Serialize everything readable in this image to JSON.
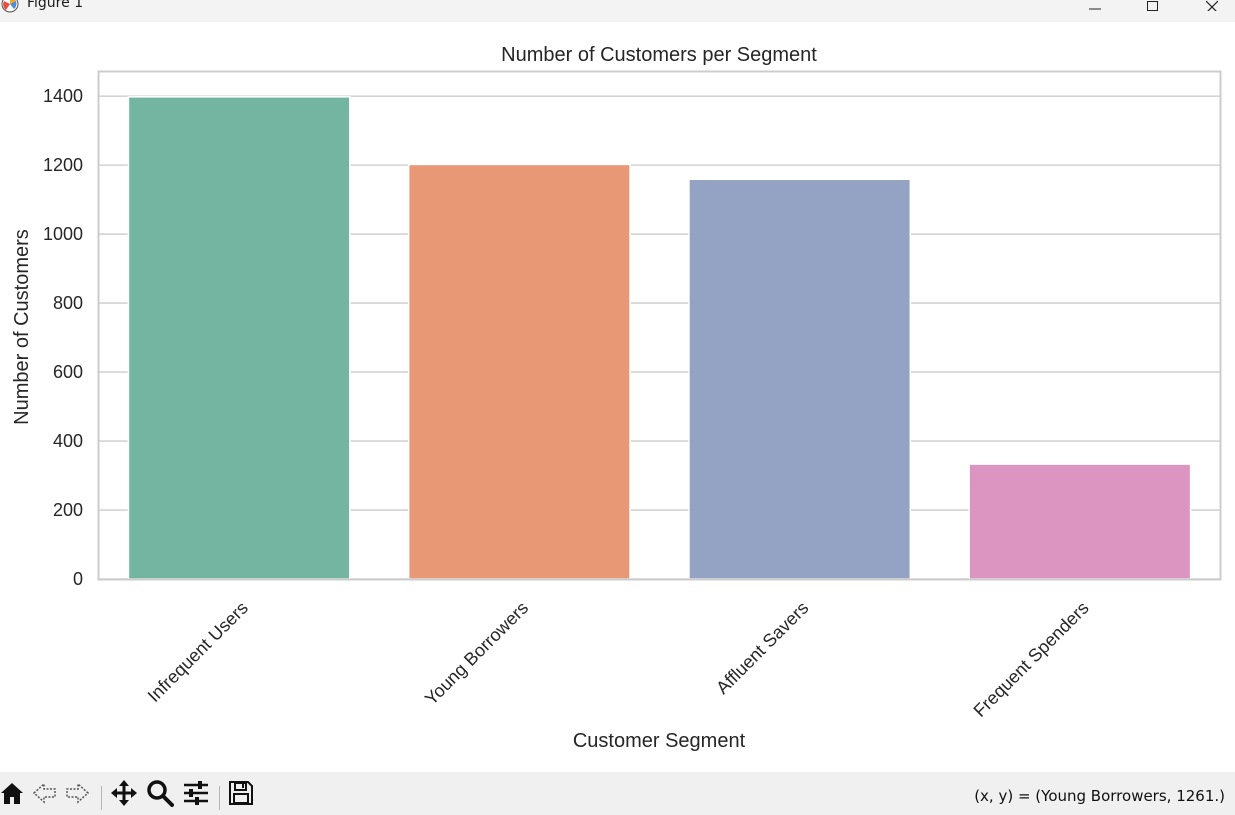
{
  "window": {
    "title": "Figure 1",
    "icons": {
      "app": "matplotlib-icon",
      "minimize": "minimize-icon",
      "maximize": "maximize-icon",
      "close": "close-icon"
    }
  },
  "toolbar": {
    "buttons": [
      {
        "name": "home",
        "icon": "home-icon"
      },
      {
        "name": "back",
        "icon": "back-arrow-icon"
      },
      {
        "name": "forward",
        "icon": "forward-arrow-icon"
      },
      {
        "name": "pan",
        "icon": "move-icon"
      },
      {
        "name": "zoom",
        "icon": "magnifier-icon"
      },
      {
        "name": "configure",
        "icon": "sliders-icon"
      },
      {
        "name": "save",
        "icon": "floppy-disk-icon"
      }
    ],
    "coords_text": "(x, y) = (Young Borrowers, 1261.)"
  },
  "chart_data": {
    "type": "bar",
    "title": "Number of Customers per Segment",
    "xlabel": "Customer Segment",
    "ylabel": "Number of Customers",
    "categories": [
      "Infrequent Users",
      "Young Borrowers",
      "Affluent Savers",
      "Frequent Spenders"
    ],
    "values": [
      1398,
      1202,
      1159,
      333
    ],
    "colors": [
      "#73b5a0",
      "#e99875",
      "#94a3c3",
      "#dc94c0"
    ],
    "ylim": [
      0,
      1470
    ],
    "yticks": [
      0,
      200,
      400,
      600,
      800,
      1000,
      1200,
      1400
    ],
    "grid": true,
    "grid_color": "#d3d3d3",
    "xtick_rotation": 45
  }
}
